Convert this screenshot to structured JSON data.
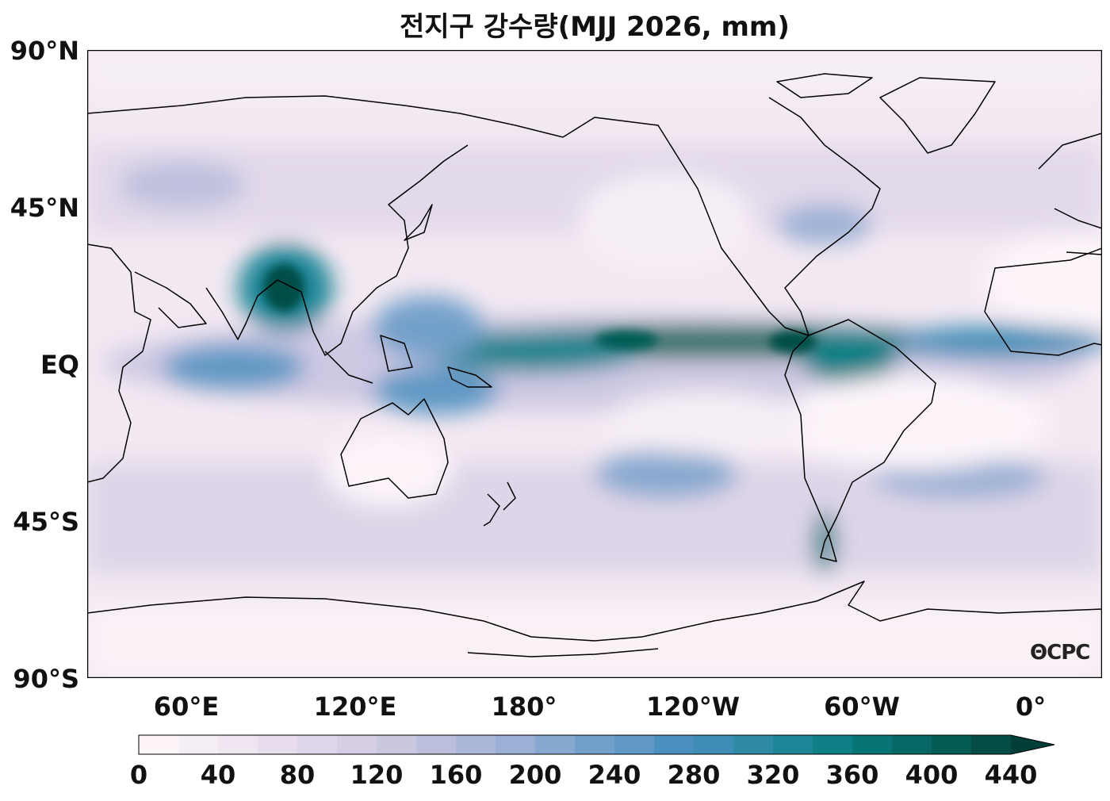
{
  "title": "전지구 강수량(MJJ 2026, mm)",
  "map": {
    "projection": "equirectangular",
    "central_longitude": 180,
    "variable": "precipitation",
    "units": "mm",
    "season": "MJJ 2026",
    "colormap": "PuBuGn"
  },
  "lat_labels": [
    "90°N",
    "45°N",
    "EQ",
    "45°S",
    "90°S"
  ],
  "lon_labels": [
    "60°E",
    "120°E",
    "180°",
    "120°W",
    "60°W",
    "0°"
  ],
  "colorbar": {
    "ticks": [
      "0",
      "40",
      "80",
      "120",
      "160",
      "200",
      "240",
      "280",
      "320",
      "360",
      "400",
      "440"
    ],
    "min": 0,
    "max": 440,
    "step": 20,
    "extend": "max",
    "colors": [
      "#fcf4f9",
      "#f6eef5",
      "#efe6f1",
      "#e8ddec",
      "#e0d6e9",
      "#d6cee5",
      "#cac7e1",
      "#bdc0dd",
      "#adb8d9",
      "#9bb0d4",
      "#87a8cf",
      "#73a0ca",
      "#5f98c4",
      "#4a90be",
      "#3f8db6",
      "#2f8aa5",
      "#1f8697",
      "#0f7f86",
      "#087474",
      "#066865",
      "#045b55",
      "#034d46"
    ],
    "extend_color": "#023f38"
  },
  "logo": "CPC",
  "colors": {
    "frame": "#000000",
    "coastline": "#000000"
  }
}
